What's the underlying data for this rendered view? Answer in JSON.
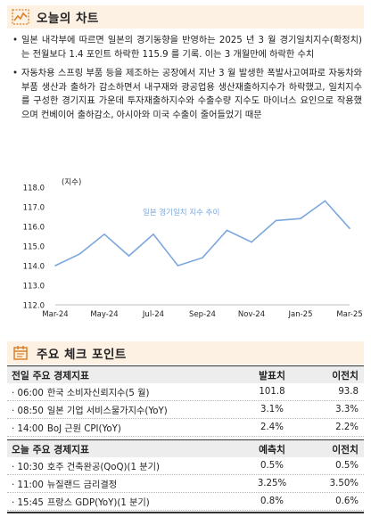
{
  "today": {
    "title": "오늘의 차트",
    "bullets": [
      "일본 내각부에 따르면 일본의 경기동향을 반영하는 2025 년 3 월 경기일치지수(확정치)는 전월보다 1.4 포인트 하락한 115.9 를 기록. 이는 3 개월만에 하락한 수치",
      "자동차용 스프링 부품 등을 제조하는 공장에서 지난 3 월 발생한 폭발사고여파로 자동차와 부품 생산과 출하가 감소하면서 내구재와 광공업용 생산재출하지수가 하락했고, 일치지수를 구성한 경기지표 가운데 투자재출하지수와 수출수량 지수도 마이너스 요인으로 작용했으며 컨베이어 출하감소, 아시아와 미국 수출이 줄어들었기 때문"
    ]
  },
  "chart_data": {
    "type": "line",
    "title": "",
    "ylabel": "(지수)",
    "xlabel": "",
    "ylim": [
      112.0,
      118.0
    ],
    "yticks": [
      "118.0",
      "117.0",
      "116.0",
      "115.0",
      "114.0",
      "113.0",
      "112.0"
    ],
    "xticks": [
      "Mar-24",
      "May-24",
      "Jul-24",
      "Sep-24",
      "Nov-24",
      "Jan-25",
      "Mar-25"
    ],
    "x": [
      "Mar-24",
      "Apr-24",
      "May-24",
      "Jun-24",
      "Jul-24",
      "Aug-24",
      "Sep-24",
      "Oct-24",
      "Nov-24",
      "Dec-24",
      "Jan-25",
      "Feb-25",
      "Mar-25"
    ],
    "series": [
      {
        "name": "일본 경기일치 지수 추이",
        "color": "#7ba7dc",
        "values": [
          114.0,
          114.6,
          115.6,
          114.5,
          115.6,
          114.0,
          114.4,
          115.8,
          115.2,
          116.3,
          116.4,
          117.3,
          115.9
        ]
      }
    ],
    "grid": false,
    "legend": "inline-top"
  },
  "check": {
    "title": "주요 체크 포인트",
    "prev": {
      "headers": [
        "전일 주요 경제지표",
        "발표치",
        "이전치"
      ],
      "rows": [
        {
          "time": "06:00",
          "name": "한국 소비자신뢰지수(5 월)",
          "v1": "101.8",
          "v2": "93.8"
        },
        {
          "time": "08:50",
          "name": "일본 기업 서비스물가지수(YoY)",
          "v1": "3.1%",
          "v2": "3.3%"
        },
        {
          "time": "14:00",
          "name": "BoJ 근원 CPI(YoY)",
          "v1": "2.4%",
          "v2": "2.2%"
        }
      ]
    },
    "next": {
      "headers": [
        "오늘 주요 경제지표",
        "예측치",
        "이전치"
      ],
      "rows": [
        {
          "time": "10:30",
          "name": "호주 건축완공(QoQ)(1 분기)",
          "v1": "0.5%",
          "v2": "0.5%"
        },
        {
          "time": "11:00",
          "name": "뉴질랜드 금리결정",
          "v1": "3.25%",
          "v2": "3.50%"
        },
        {
          "time": "15:45",
          "name": "프랑스 GDP(YoY)(1 분기)",
          "v1": "0.8%",
          "v2": "0.6%"
        }
      ]
    }
  },
  "icons": {
    "chart": "line-chart-icon",
    "check": "calendar-check-icon",
    "accent": "#d9822b"
  }
}
